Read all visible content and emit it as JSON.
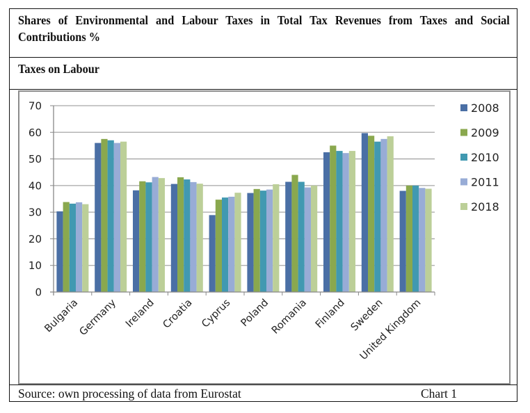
{
  "document": {
    "title": "Shares of Environmental and Labour Taxes in Total Tax Revenues from Taxes and Social Contributions %",
    "subtitle": "Taxes on Labour",
    "source": "Source: own processing of data from Eurostat",
    "chart_number": "Chart 1"
  },
  "colors": {
    "2008": "#4a6fa5",
    "2009": "#8aa84e",
    "2010": "#4199b1",
    "2011": "#98acd6",
    "2018": "#bccf98",
    "gridline": "#a6a6a6",
    "frame": "#8c8c8c"
  },
  "chart_data": {
    "type": "bar",
    "title": "Taxes on Labour",
    "xlabel": "",
    "ylabel": "",
    "ylim": [
      0,
      70
    ],
    "yticks": [
      0,
      10,
      20,
      30,
      40,
      50,
      60,
      70
    ],
    "grid": true,
    "legend_position": "right",
    "categories": [
      "Bulgaria",
      "Germany",
      "Ireland",
      "Croatia",
      "Cyprus",
      "Poland",
      "Romania",
      "Finland",
      "Sweden",
      "United Kingdom"
    ],
    "series": [
      {
        "name": "2008",
        "values": [
          30.3,
          56.0,
          38.2,
          40.6,
          28.9,
          37.2,
          41.4,
          52.5,
          59.7,
          38.0
        ]
      },
      {
        "name": "2009",
        "values": [
          33.8,
          57.5,
          41.6,
          43.1,
          34.7,
          38.7,
          44.0,
          55.0,
          58.7,
          40.0
        ]
      },
      {
        "name": "2010",
        "values": [
          33.2,
          57.0,
          41.2,
          42.3,
          35.5,
          38.1,
          41.4,
          53.0,
          56.5,
          40.0
        ]
      },
      {
        "name": "2011",
        "values": [
          33.7,
          56.0,
          43.2,
          41.3,
          35.8,
          38.5,
          39.3,
          52.2,
          57.5,
          39.1
        ]
      },
      {
        "name": "2018",
        "values": [
          33.0,
          56.5,
          42.8,
          40.7,
          37.3,
          40.5,
          40.0,
          53.0,
          58.5,
          38.8
        ]
      }
    ]
  }
}
